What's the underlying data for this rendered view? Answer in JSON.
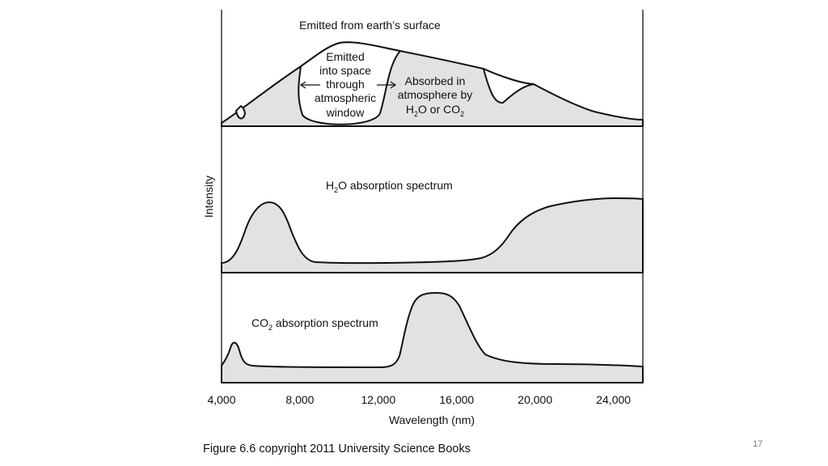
{
  "chart_data": {
    "type": "area",
    "x_axis": {
      "label": "Wavelength (nm)",
      "range": [
        4000,
        25500
      ],
      "ticks": [
        4000,
        8000,
        12000,
        16000,
        20000,
        24000
      ],
      "tick_labels": [
        "4,000",
        "8,000",
        "12,000",
        "16,000",
        "20,000",
        "24,000"
      ]
    },
    "y_axis": {
      "label": "Intensity",
      "ticks_shown": false
    },
    "panels": [
      {
        "id": "emission",
        "annotations": {
          "top": "Emitted from earth’s surface",
          "window": [
            "Emitted",
            "into space",
            "through",
            "atmospheric",
            "window"
          ],
          "absorbed_1": "Absorbed in",
          "absorbed_2": "atmosphere by",
          "absorbed_3a": "H",
          "absorbed_3b": "2",
          "absorbed_3c": "O or CO",
          "absorbed_3d": "2"
        }
      },
      {
        "id": "h2o",
        "title_a": "H",
        "title_b": "2",
        "title_c": "O absorption spectrum"
      },
      {
        "id": "co2",
        "title_a": "CO",
        "title_b": "2",
        "title_c": " absorption spectrum"
      }
    ]
  },
  "caption": "Figure 6.6 copyright 2011 University Science Books",
  "slide_number": "17"
}
